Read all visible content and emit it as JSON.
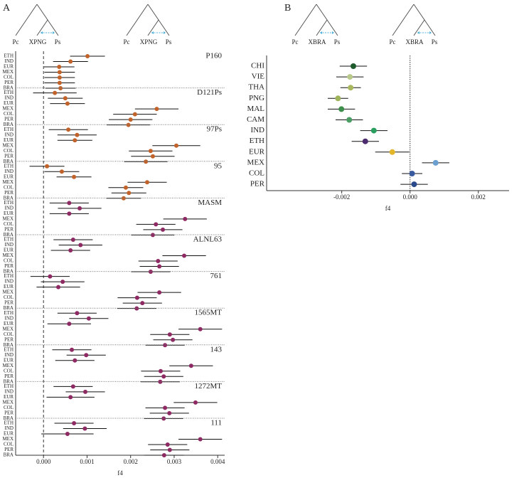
{
  "chart_data": [
    {
      "type": "errorbar",
      "panel_label": "A",
      "tree_labels": [
        [
          "Pc",
          "XPNG",
          "Ps"
        ],
        [
          "Pc",
          "XPNG",
          "Ps"
        ]
      ],
      "xlabel": "f4",
      "xlim": [
        -0.00064,
        0.00416
      ],
      "xticks": [
        {
          "value": 0,
          "label": "0.000"
        },
        {
          "value": 0.001,
          "label": "0.001"
        },
        {
          "value": 0.002,
          "label": "0.002"
        },
        {
          "value": 0.003,
          "label": "0.003"
        },
        {
          "value": 0.004,
          "label": "0.004"
        }
      ],
      "reference_line": 0,
      "groups": [
        {
          "name": "P160",
          "color": "#c0622a",
          "categories": [
            "ETH",
            "IND",
            "EUR",
            "MEX",
            "COL",
            "PER",
            "BRA"
          ],
          "values": [
            0.00101,
            0.00062,
            0.00036,
            0.00037,
            0.00037,
            0.00037,
            0.00039
          ],
          "errors": [
            0.0004,
            0.0004,
            0.00035,
            0.00035,
            0.00035,
            0.00035,
            0.00035
          ]
        },
        {
          "name": "D121Ps",
          "color": "#c0622a",
          "categories": [
            "ETH",
            "IND",
            "EUR",
            "MEX",
            "COL",
            "PER",
            "BRA"
          ],
          "values": [
            0.00026,
            0.0005,
            0.00055,
            0.0026,
            0.0021,
            0.002,
            0.00195
          ],
          "errors": [
            0.0005,
            0.0004,
            0.0004,
            0.0005,
            0.0005,
            0.0005,
            0.0005
          ]
        },
        {
          "name": "97Ps",
          "color": "#c0622a",
          "categories": [
            "ETH",
            "IND",
            "EUR",
            "MEX",
            "COL",
            "PER",
            "BRA"
          ],
          "values": [
            0.00057,
            0.00077,
            0.00072,
            0.00305,
            0.00246,
            0.00251,
            0.00235
          ],
          "errors": [
            0.00045,
            0.00045,
            0.0004,
            0.00055,
            0.0005,
            0.0005,
            0.0005
          ]
        },
        {
          "name": "95",
          "color": "#c0622a",
          "categories": [
            "ETH",
            "IND",
            "EUR",
            "MEX",
            "COL",
            "PER",
            "BRA"
          ],
          "values": [
            8e-05,
            0.00042,
            0.0007,
            0.00238,
            0.00189,
            0.00196,
            0.00184
          ],
          "errors": [
            0.0004,
            0.0004,
            0.0004,
            0.00045,
            0.0004,
            0.0004,
            0.0004
          ]
        },
        {
          "name": "MASM",
          "color": "#8e2a63",
          "categories": [
            "ETH",
            "IND",
            "EUR",
            "MEX",
            "COL",
            "PER",
            "BRA"
          ],
          "values": [
            0.00059,
            0.00083,
            0.00059,
            0.00325,
            0.00258,
            0.00274,
            0.00251
          ],
          "errors": [
            0.00045,
            0.0005,
            0.00045,
            0.0005,
            0.00045,
            0.00045,
            0.0005
          ]
        },
        {
          "name": "ALNL63",
          "color": "#8e2a63",
          "categories": [
            "ETH",
            "IND",
            "EUR",
            "MEX",
            "COL",
            "PER",
            "BRA"
          ],
          "values": [
            0.00068,
            0.00085,
            0.00062,
            0.00323,
            0.00263,
            0.00266,
            0.00246
          ],
          "errors": [
            0.00045,
            0.0005,
            0.00045,
            0.0005,
            0.00045,
            0.00045,
            0.00045
          ]
        },
        {
          "name": "761",
          "color": "#8e2a63",
          "categories": [
            "ETH",
            "IND",
            "EUR",
            "MEX",
            "COL",
            "PER",
            "BRA"
          ],
          "values": [
            0.00015,
            0.00044,
            0.00034,
            0.00266,
            0.00215,
            0.00227,
            0.00214
          ],
          "errors": [
            0.00045,
            0.0005,
            0.0005,
            0.0005,
            0.00045,
            0.00045,
            0.00045
          ]
        },
        {
          "name": "1565MT",
          "color": "#8e2a63",
          "categories": [
            "ETH",
            "IND",
            "EUR",
            "MEX",
            "COL",
            "PER",
            "BRA"
          ],
          "values": [
            0.00077,
            0.00104,
            0.00059,
            0.0036,
            0.0029,
            0.00297,
            0.00279
          ],
          "errors": [
            0.00045,
            0.00045,
            0.0005,
            0.0005,
            0.00045,
            0.00045,
            0.00045
          ]
        },
        {
          "name": "143",
          "color": "#8e2a63",
          "categories": [
            "ETH",
            "IND",
            "EUR",
            "MEX",
            "COL",
            "PER",
            "BRA"
          ],
          "values": [
            0.00065,
            0.00098,
            0.00072,
            0.00339,
            0.00269,
            0.00276,
            0.00268
          ],
          "errors": [
            0.00045,
            0.00045,
            0.00045,
            0.0005,
            0.00045,
            0.00045,
            0.00045
          ]
        },
        {
          "name": "1272MT",
          "color": "#8e2a63",
          "categories": [
            "ETH",
            "IND",
            "EUR",
            "MEX",
            "COL",
            "PER",
            "BRA"
          ],
          "values": [
            0.00068,
            0.00096,
            0.00062,
            0.00349,
            0.00279,
            0.00289,
            0.00276
          ],
          "errors": [
            0.00045,
            0.00045,
            0.00055,
            0.0005,
            0.00045,
            0.00045,
            0.00045
          ]
        },
        {
          "name": "111",
          "color": "#8e2a63",
          "categories": [
            "ETH",
            "IND",
            "EUR",
            "MEX",
            "COL",
            "PER",
            "BRA"
          ],
          "values": [
            0.0007,
            0.00095,
            0.00055,
            0.0036,
            0.00285,
            0.0029,
            0.00277
          ],
          "errors": [
            0.00045,
            0.0005,
            0.0006,
            0.0005,
            0.00045,
            0.00045,
            0.00045
          ]
        }
      ]
    },
    {
      "type": "errorbar",
      "panel_label": "B",
      "tree_labels": [
        [
          "Pc",
          "XBRA",
          "Ps"
        ],
        [
          "Pc",
          "XBRA",
          "Ps"
        ]
      ],
      "xlabel": "f4",
      "xlim": [
        -0.0042,
        0.0029
      ],
      "xticks": [
        {
          "value": -0.002,
          "label": "-0.002"
        },
        {
          "value": 0,
          "label": "0.000"
        },
        {
          "value": 0.002,
          "label": "0.002"
        }
      ],
      "reference_line": 0,
      "categories": [
        "CHI",
        "VIE",
        "THA",
        "PNG",
        "MAL",
        "CAM",
        "IND",
        "ETH",
        "EUR",
        "MEX",
        "COL",
        "PER"
      ],
      "values": [
        -0.00166,
        -0.00176,
        -0.00174,
        -0.00211,
        -0.00201,
        -0.00178,
        -0.00106,
        -0.00131,
        -0.00052,
        0.00075,
        6e-05,
        0.00012
      ],
      "errors": [
        0.0004,
        0.0004,
        0.0003,
        0.0003,
        0.0004,
        0.0004,
        0.0004,
        0.0004,
        0.0005,
        0.0004,
        0.0003,
        0.0004
      ],
      "colors": [
        "#1d5a2c",
        "#b9c98c",
        "#a7b85e",
        "#9eb35a",
        "#3b8f4b",
        "#4a9e63",
        "#2a9e5e",
        "#4b2a6e",
        "#e2b52a",
        "#6b9fd0",
        "#3a5aa0",
        "#2b4a8c"
      ]
    }
  ]
}
